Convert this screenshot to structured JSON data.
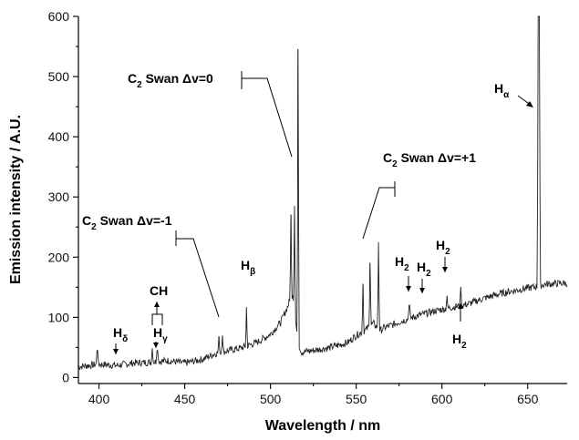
{
  "chart_data": {
    "type": "line",
    "xlabel": "Wavelength / nm",
    "ylabel": "Emission intensity / A.U.",
    "xlim": [
      388,
      673
    ],
    "ylim": [
      -10,
      600
    ],
    "xticks": [
      400,
      450,
      500,
      550,
      600,
      650
    ],
    "yticks": [
      0,
      100,
      200,
      300,
      400,
      500,
      600
    ],
    "grid": false,
    "legend": "none",
    "series": [
      {
        "baseline": [
          [
            388,
            18
          ],
          [
            400,
            22
          ],
          [
            410,
            20
          ],
          [
            420,
            24
          ],
          [
            428,
            25
          ],
          [
            440,
            28
          ],
          [
            450,
            24
          ],
          [
            460,
            30
          ],
          [
            468,
            40
          ],
          [
            476,
            45
          ],
          [
            484,
            50
          ],
          [
            492,
            58
          ],
          [
            500,
            72
          ],
          [
            506,
            92
          ],
          [
            510,
            118
          ],
          [
            513,
            140
          ],
          [
            516,
            60
          ],
          [
            518,
            42
          ],
          [
            525,
            45
          ],
          [
            535,
            50
          ],
          [
            545,
            58
          ],
          [
            550,
            70
          ],
          [
            555,
            78
          ],
          [
            560,
            90
          ],
          [
            564,
            78
          ],
          [
            566,
            82
          ],
          [
            575,
            92
          ],
          [
            585,
            102
          ],
          [
            595,
            110
          ],
          [
            605,
            116
          ],
          [
            615,
            122
          ],
          [
            625,
            132
          ],
          [
            635,
            140
          ],
          [
            645,
            146
          ],
          [
            655,
            151
          ],
          [
            660,
            155
          ],
          [
            665,
            156
          ],
          [
            673,
            157
          ]
        ],
        "peaks": [
          [
            399,
            45
          ],
          [
            431,
            48
          ],
          [
            434,
            45
          ],
          [
            470,
            68
          ],
          [
            472,
            70
          ],
          [
            486,
            117
          ],
          [
            512,
            270
          ],
          [
            514,
            285
          ],
          [
            516,
            545
          ],
          [
            554,
            155
          ],
          [
            558,
            190
          ],
          [
            563,
            225
          ],
          [
            581,
            120
          ],
          [
            603,
            135
          ],
          [
            611,
            150
          ],
          [
            656.3,
            600
          ],
          [
            656.6,
            600
          ]
        ]
      }
    ],
    "annotations": {
      "c2_dv0": {
        "main": "C",
        "sub": "2",
        "rest": " Swan Δv=0"
      },
      "c2_dvp1": {
        "main": "C",
        "sub": "2",
        "rest": " Swan Δv=+1"
      },
      "c2_dvm1": {
        "main": "C",
        "sub": "2",
        "rest": " Swan Δv=-1"
      },
      "h_alpha": {
        "main": "H",
        "sub": "α"
      },
      "h_beta": {
        "main": "H",
        "sub": "β"
      },
      "h_gamma": {
        "main": "H",
        "sub": "γ"
      },
      "h_delta": {
        "main": "H",
        "sub": "δ"
      },
      "ch": {
        "main": "CH"
      },
      "h2": {
        "main": "H",
        "sub": "2"
      }
    }
  }
}
